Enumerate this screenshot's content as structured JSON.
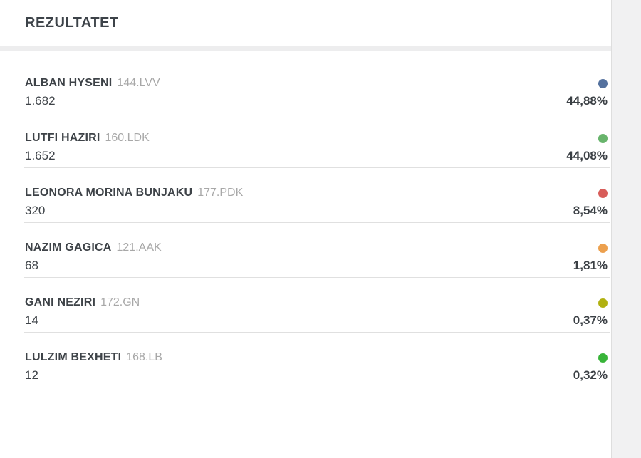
{
  "header": {
    "title": "REZULTATET"
  },
  "results": [
    {
      "name": "ALBAN HYSENI",
      "code": "144.LVV",
      "votes": "1.682",
      "percent": "44,88%",
      "color": "#54719e"
    },
    {
      "name": "LUTFI HAZIRI",
      "code": "160.LDK",
      "votes": "1.652",
      "percent": "44,08%",
      "color": "#68b46c"
    },
    {
      "name": "LEONORA MORINA BUNJAKU",
      "code": "177.PDK",
      "votes": "320",
      "percent": "8,54%",
      "color": "#d85d5a"
    },
    {
      "name": "NAZIM GAGICA",
      "code": "121.AAK",
      "votes": "68",
      "percent": "1,81%",
      "color": "#eca04e"
    },
    {
      "name": "GANI NEZIRI",
      "code": "172.GN",
      "votes": "14",
      "percent": "0,37%",
      "color": "#b1b111"
    },
    {
      "name": "LULZIM BEXHETI",
      "code": "168.LB",
      "votes": "12",
      "percent": "0,32%",
      "color": "#38b439"
    }
  ]
}
